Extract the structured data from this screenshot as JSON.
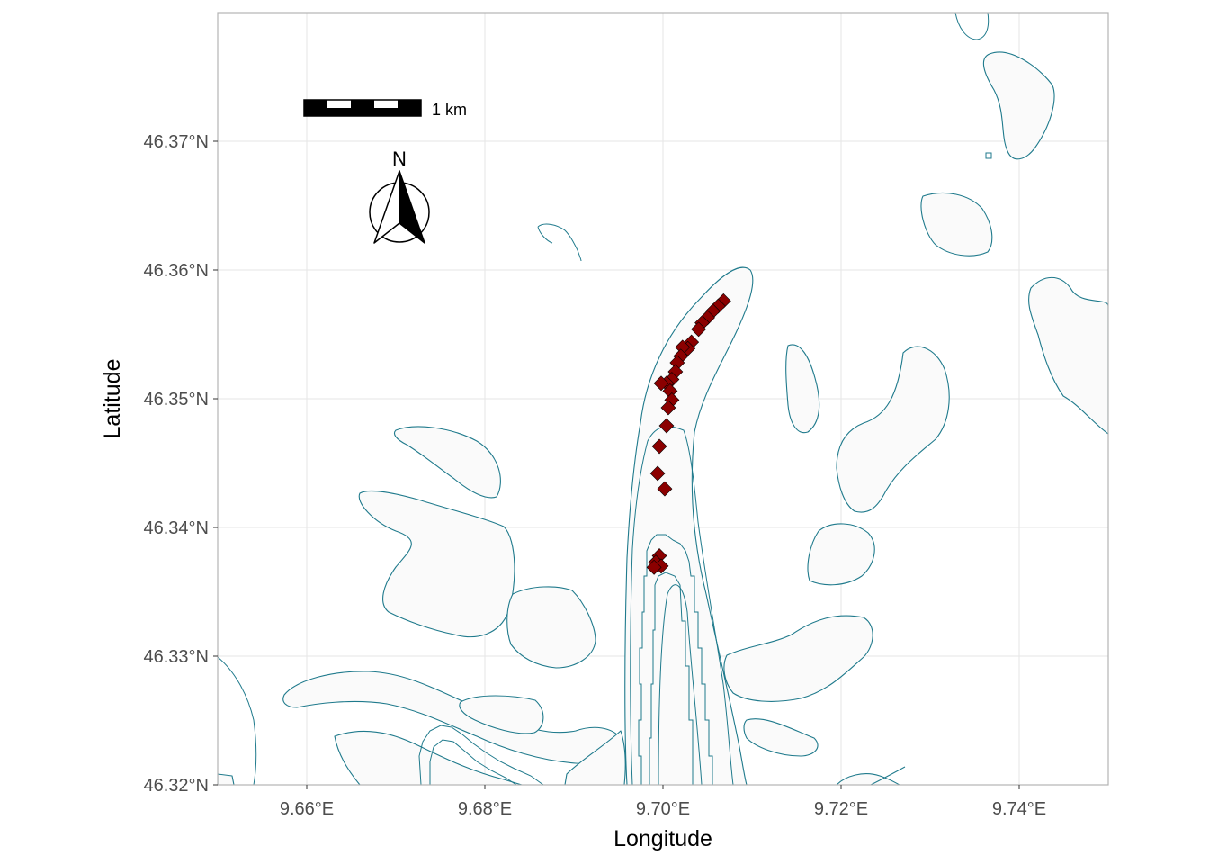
{
  "map": {
    "x_axis": {
      "title": "Longitude",
      "ticks": [
        {
          "value": 9.66,
          "label": "9.66°E"
        },
        {
          "value": 9.68,
          "label": "9.68°E"
        },
        {
          "value": 9.7,
          "label": "9.70°E"
        },
        {
          "value": 9.72,
          "label": "9.72°E"
        },
        {
          "value": 9.74,
          "label": "9.74°E"
        }
      ],
      "range": [
        9.65,
        9.75
      ]
    },
    "y_axis": {
      "title": "Latitude",
      "ticks": [
        {
          "value": 46.32,
          "label": "46.32°N"
        },
        {
          "value": 46.33,
          "label": "46.33°N"
        },
        {
          "value": 46.34,
          "label": "46.34°N"
        },
        {
          "value": 46.35,
          "label": "46.35°N"
        },
        {
          "value": 46.36,
          "label": "46.36°N"
        },
        {
          "value": 46.37,
          "label": "46.37°N"
        }
      ],
      "range": [
        46.32,
        46.38
      ]
    },
    "scale_bar": {
      "label": "1 km"
    },
    "north_arrow": {
      "label": "N"
    },
    "colors": {
      "contour": "#1f7a8c",
      "polygon_fill": "#fafafa",
      "points": "#8b0000",
      "grid": "#e6e6e6",
      "panel_border": "#b3b3b3"
    },
    "points": [
      {
        "lon": 9.7068,
        "lat": 46.3576
      },
      {
        "lon": 9.7062,
        "lat": 46.3572
      },
      {
        "lon": 9.7056,
        "lat": 46.3568
      },
      {
        "lon": 9.705,
        "lat": 46.3563
      },
      {
        "lon": 9.7044,
        "lat": 46.3559
      },
      {
        "lon": 9.704,
        "lat": 46.3554
      },
      {
        "lon": 9.7032,
        "lat": 46.3544
      },
      {
        "lon": 9.7028,
        "lat": 46.3539
      },
      {
        "lon": 9.7022,
        "lat": 46.354
      },
      {
        "lon": 9.702,
        "lat": 46.3533
      },
      {
        "lon": 9.7016,
        "lat": 46.3528
      },
      {
        "lon": 9.7014,
        "lat": 46.3521
      },
      {
        "lon": 9.701,
        "lat": 46.3515
      },
      {
        "lon": 9.7004,
        "lat": 46.3512
      },
      {
        "lon": 9.6998,
        "lat": 46.3512
      },
      {
        "lon": 9.7008,
        "lat": 46.3506
      },
      {
        "lon": 9.701,
        "lat": 46.3499
      },
      {
        "lon": 9.7006,
        "lat": 46.3493
      },
      {
        "lon": 9.7004,
        "lat": 46.3479
      },
      {
        "lon": 9.6996,
        "lat": 46.3463
      },
      {
        "lon": 9.6994,
        "lat": 46.3442
      },
      {
        "lon": 9.7002,
        "lat": 46.343
      },
      {
        "lon": 9.6996,
        "lat": 46.3378
      },
      {
        "lon": 9.6992,
        "lat": 46.3373
      },
      {
        "lon": 9.6998,
        "lat": 46.337
      },
      {
        "lon": 9.699,
        "lat": 46.3369
      }
    ]
  }
}
